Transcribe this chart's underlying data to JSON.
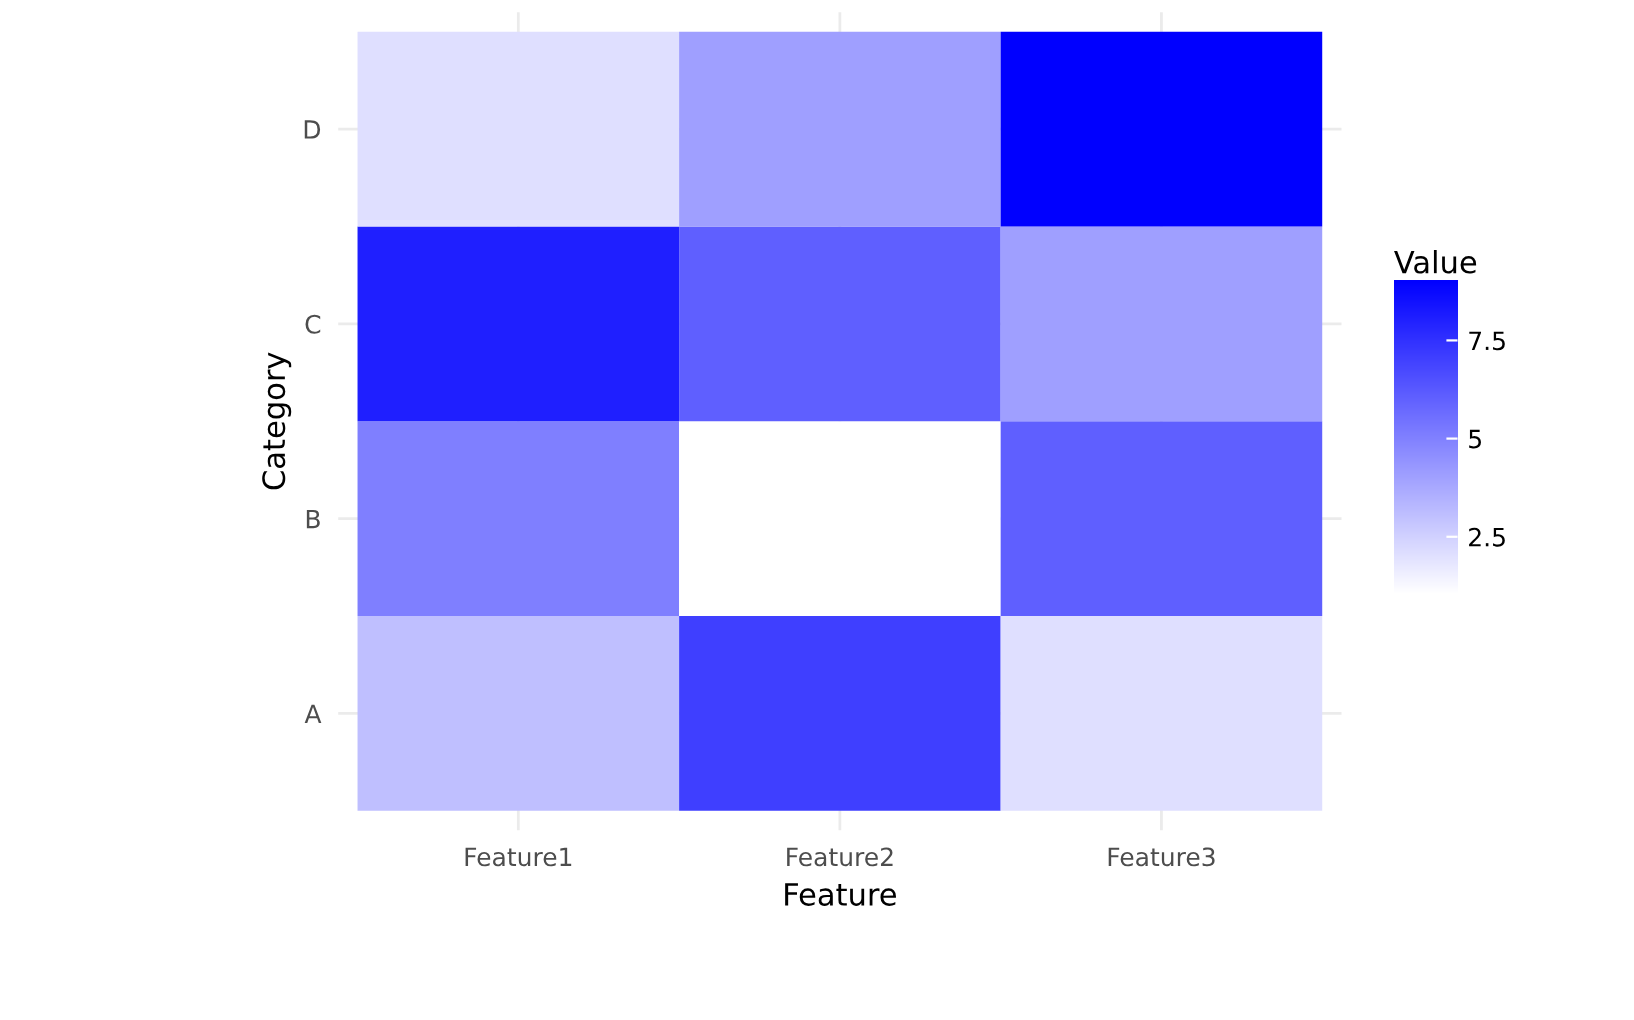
{
  "chart_data": {
    "type": "heatmap",
    "xlabel": "Feature",
    "ylabel": "Category",
    "clabel": "Value",
    "categories": [
      "Feature1",
      "Feature2",
      "Feature3"
    ],
    "y_categories": [
      "D",
      "C",
      "B",
      "A"
    ],
    "cells": [
      [
        2,
        4,
        9
      ],
      [
        8,
        6,
        4
      ],
      [
        5,
        1,
        6
      ],
      [
        3,
        7,
        2
      ]
    ],
    "colors": [
      "#ffffff",
      "#0000ff"
    ],
    "clim": [
      1,
      9
    ],
    "cticks": [
      2.5,
      5,
      7.5
    ],
    "grid": true
  }
}
